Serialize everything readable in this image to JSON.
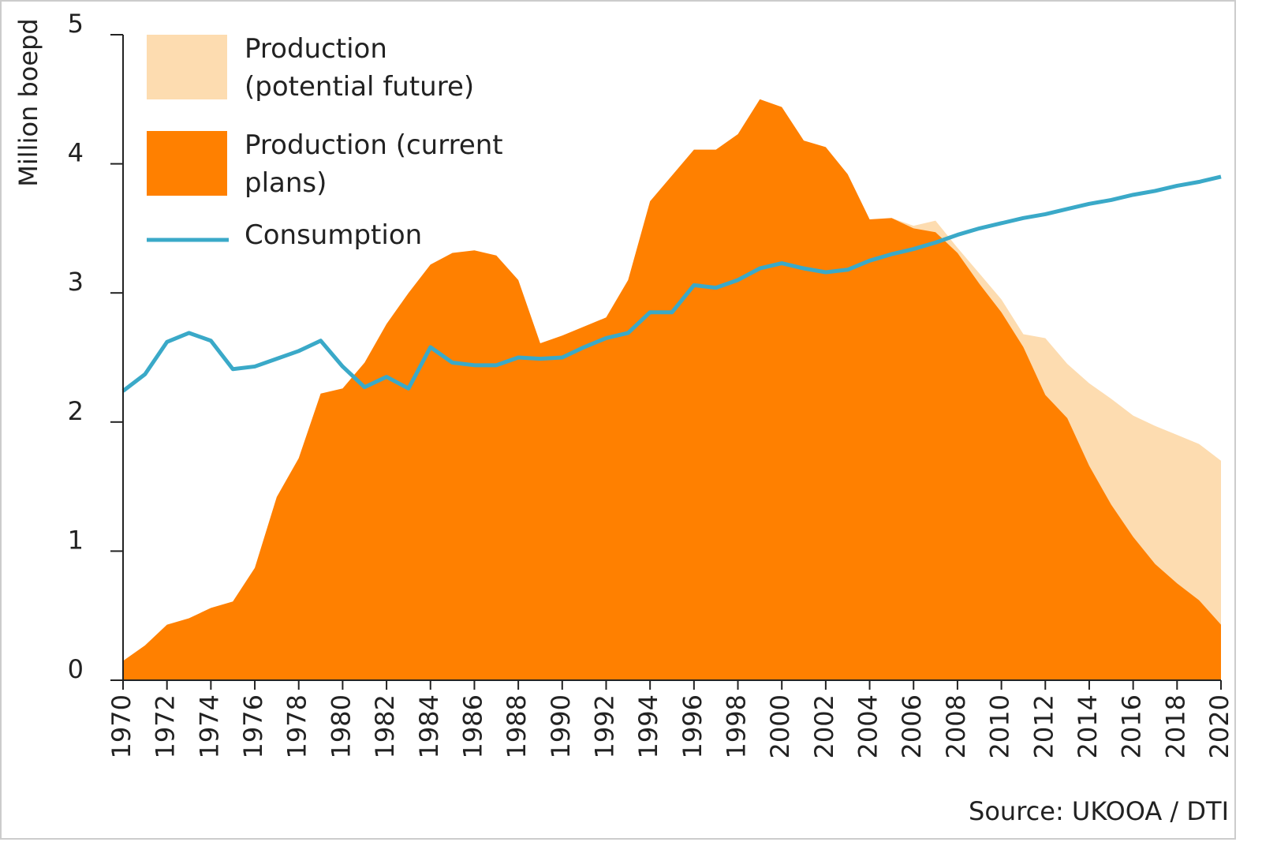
{
  "chart_data": {
    "type": "area",
    "y_label": "Million boepd",
    "source": "Source: UKOOA / DTI",
    "x": [
      1970,
      1971,
      1972,
      1973,
      1974,
      1975,
      1976,
      1977,
      1978,
      1979,
      1980,
      1981,
      1982,
      1983,
      1984,
      1985,
      1986,
      1987,
      1988,
      1989,
      1990,
      1991,
      1992,
      1993,
      1994,
      1995,
      1996,
      1997,
      1998,
      1999,
      2000,
      2001,
      2002,
      2003,
      2004,
      2005,
      2006,
      2007,
      2008,
      2009,
      2010,
      2011,
      2012,
      2013,
      2014,
      2015,
      2016,
      2017,
      2018,
      2019,
      2020
    ],
    "xlim": [
      1970,
      2020
    ],
    "xticks": [
      1970,
      1972,
      1974,
      1976,
      1978,
      1980,
      1982,
      1984,
      1986,
      1988,
      1990,
      1992,
      1994,
      1996,
      1998,
      2000,
      2002,
      2004,
      2006,
      2008,
      2010,
      2012,
      2014,
      2016,
      2018,
      2020
    ],
    "ylim": [
      0,
      5
    ],
    "yticks": [
      0,
      1,
      2,
      3,
      4,
      5
    ],
    "series": [
      {
        "name": "Production (potential future)",
        "color": "#fddcb0",
        "kind": "area",
        "values": [
          null,
          null,
          null,
          null,
          null,
          null,
          null,
          null,
          null,
          null,
          null,
          null,
          null,
          null,
          null,
          null,
          null,
          null,
          null,
          null,
          null,
          null,
          null,
          null,
          null,
          null,
          null,
          null,
          null,
          null,
          null,
          null,
          null,
          null,
          null,
          3.58,
          3.52,
          3.56,
          3.35,
          3.15,
          2.95,
          2.68,
          2.65,
          2.45,
          2.3,
          2.18,
          2.05,
          1.97,
          1.9,
          1.83,
          1.7
        ]
      },
      {
        "name": "Production (current plans)",
        "color": "#ff8000",
        "kind": "area",
        "values": [
          0.15,
          0.27,
          0.43,
          0.48,
          0.56,
          0.61,
          0.87,
          1.42,
          1.72,
          2.22,
          2.26,
          2.46,
          2.76,
          3.0,
          3.22,
          3.31,
          3.33,
          3.29,
          3.1,
          2.61,
          2.67,
          2.74,
          2.81,
          3.1,
          3.71,
          3.91,
          4.11,
          4.11,
          4.23,
          4.5,
          4.44,
          4.18,
          4.13,
          3.92,
          3.57,
          3.58,
          3.5,
          3.47,
          3.31,
          3.07,
          2.85,
          2.58,
          2.21,
          2.03,
          1.66,
          1.36,
          1.11,
          0.9,
          0.75,
          0.62,
          0.43
        ]
      },
      {
        "name": "Consumption",
        "color": "#3aa9c8",
        "kind": "line",
        "values": [
          2.24,
          2.37,
          2.62,
          2.69,
          2.63,
          2.41,
          2.43,
          2.49,
          2.55,
          2.63,
          2.43,
          2.27,
          2.35,
          2.26,
          2.58,
          2.46,
          2.44,
          2.44,
          2.5,
          2.49,
          2.5,
          2.58,
          2.65,
          2.69,
          2.85,
          2.85,
          3.06,
          3.04,
          3.1,
          3.19,
          3.23,
          3.19,
          3.16,
          3.18,
          3.25,
          3.3,
          3.34,
          3.39,
          3.45,
          3.5,
          3.54,
          3.58,
          3.61,
          3.65,
          3.69,
          3.72,
          3.76,
          3.79,
          3.83,
          3.86,
          3.9
        ]
      }
    ]
  }
}
